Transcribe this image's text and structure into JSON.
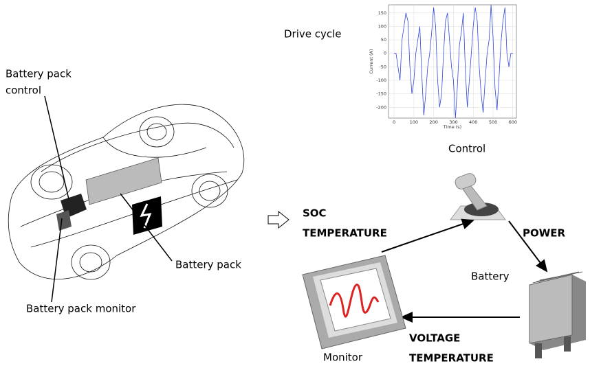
{
  "labels": {
    "drive_cycle": "Drive cycle",
    "pack_control": [
      "Battery pack",
      "control"
    ],
    "battery_pack": "Battery pack",
    "pack_monitor": "Battery pack monitor",
    "control": "Control",
    "soc": "SOC",
    "temperature_in": "TEMPERATURE",
    "power": "POWER",
    "battery": "Battery",
    "monitor": "Monitor",
    "voltage": "VOLTAGE",
    "temperature_out": "TEMPERATURE"
  },
  "chart_data": {
    "type": "line",
    "x_label": "Time (s)",
    "y_label": "Current (A)",
    "color": "#3344dd",
    "grid": true,
    "x": [
      0,
      10,
      20,
      30,
      40,
      50,
      60,
      70,
      80,
      90,
      100,
      110,
      120,
      130,
      140,
      150,
      160,
      170,
      180,
      190,
      200,
      210,
      220,
      230,
      240,
      250,
      260,
      270,
      280,
      290,
      300,
      310,
      320,
      330,
      340,
      350,
      360,
      370,
      380,
      390,
      400,
      410,
      420,
      430,
      440,
      450,
      460,
      470,
      480,
      490,
      500,
      510,
      520,
      530,
      540,
      550,
      560,
      570,
      580,
      590,
      600
    ],
    "values": [
      0,
      0,
      -50,
      -100,
      50,
      100,
      150,
      120,
      -50,
      -150,
      -100,
      0,
      50,
      100,
      -80,
      -230,
      -150,
      -50,
      0,
      80,
      170,
      100,
      -100,
      -200,
      -150,
      0,
      120,
      150,
      50,
      -50,
      -100,
      -240,
      -120,
      30,
      80,
      150,
      -60,
      -200,
      -100,
      0,
      100,
      170,
      120,
      -50,
      -150,
      -220,
      -100,
      0,
      50,
      180,
      60,
      -130,
      -210,
      -90,
      40,
      120,
      170,
      0,
      -50,
      0,
      0
    ],
    "xlim": [
      -28,
      618
    ],
    "ylim": [
      -240,
      180
    ],
    "xticks": [
      0,
      100,
      200,
      300,
      400,
      500,
      600
    ],
    "yticks": [
      150,
      100,
      50,
      0,
      -50,
      -100,
      -150,
      -200
    ]
  }
}
